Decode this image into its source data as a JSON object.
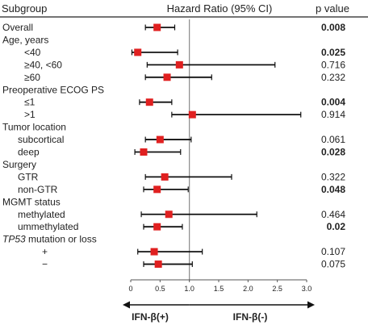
{
  "header": {
    "subgroup": "Subgroup",
    "hr": "Hazard Ratio (95% CI)",
    "pvalue": "p value"
  },
  "chart_data": {
    "type": "forest",
    "x_axis": {
      "min": 0,
      "max": 3.0,
      "ticks": [
        "0",
        "0.5",
        "1.0",
        "1.5",
        "2.0",
        "2.5",
        "3.0"
      ],
      "reference_line": 1.0
    },
    "rows": [
      {
        "label": "Overall",
        "indent": 0,
        "hr": 0.45,
        "lo": 0.25,
        "hi": 0.75,
        "p": "0.008",
        "p_bold": true
      },
      {
        "label": "Age, years",
        "indent": 0,
        "header": true
      },
      {
        "label": "<40",
        "indent": 2,
        "hr": 0.12,
        "lo": 0.02,
        "hi": 0.8,
        "p": "0.025",
        "p_bold": true
      },
      {
        "label": "≥40, <60",
        "indent": 2,
        "hr": 0.83,
        "lo": 0.28,
        "hi": 2.46,
        "p": "0.716",
        "p_bold": false
      },
      {
        "label": "≥60",
        "indent": 2,
        "hr": 0.62,
        "lo": 0.25,
        "hi": 1.38,
        "p": "0.232",
        "p_bold": false
      },
      {
        "label": "Preoperative ECOG PS",
        "indent": 0,
        "header": true
      },
      {
        "label": "≤1",
        "indent": 2,
        "hr": 0.32,
        "lo": 0.15,
        "hi": 0.7,
        "p": "0.004",
        "p_bold": true
      },
      {
        "label": ">1",
        "indent": 2,
        "hr": 1.05,
        "lo": 0.7,
        "hi": 2.9,
        "p": "0.914",
        "p_bold": false
      },
      {
        "label": "Tumor location",
        "indent": 0,
        "header": true
      },
      {
        "label": "subcortical",
        "indent": 1,
        "hr": 0.5,
        "lo": 0.25,
        "hi": 1.03,
        "p": "0.061",
        "p_bold": false
      },
      {
        "label": "deep",
        "indent": 1,
        "hr": 0.22,
        "lo": 0.07,
        "hi": 0.85,
        "p": "0.028",
        "p_bold": true
      },
      {
        "label": "Surgery",
        "indent": 0,
        "header": true
      },
      {
        "label": "GTR",
        "indent": 1,
        "hr": 0.58,
        "lo": 0.25,
        "hi": 1.72,
        "p": "0.322",
        "p_bold": false
      },
      {
        "label": "non-GTR",
        "indent": 1,
        "hr": 0.45,
        "lo": 0.22,
        "hi": 0.98,
        "p": "0.048",
        "p_bold": true
      },
      {
        "label": "MGMT status",
        "indent": 0,
        "header": true
      },
      {
        "label": "methylated",
        "indent": 1,
        "hr": 0.65,
        "lo": 0.18,
        "hi": 2.15,
        "p": "0.464",
        "p_bold": false
      },
      {
        "label": "ummethylated",
        "indent": 1,
        "hr": 0.45,
        "lo": 0.22,
        "hi": 0.88,
        "p": "0.02",
        "p_bold": true
      },
      {
        "label": "TP53",
        "label_suffix": " mutation or loss",
        "indent": 0,
        "header": true,
        "italic_prefix": true
      },
      {
        "label": "+",
        "indent": 3,
        "hr": 0.4,
        "lo": 0.12,
        "hi": 1.22,
        "p": "0.107",
        "p_bold": false
      },
      {
        "label": "−",
        "indent": 3,
        "hr": 0.47,
        "lo": 0.22,
        "hi": 1.05,
        "p": "0.075",
        "p_bold": false
      }
    ],
    "arrows": {
      "left": "IFN-β(+)",
      "right": "IFN-β(-)"
    },
    "colors": {
      "marker": "#e02020",
      "line": "#111111",
      "reference": "#888888"
    }
  }
}
